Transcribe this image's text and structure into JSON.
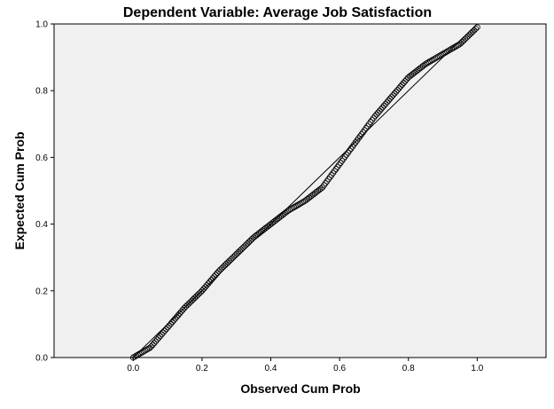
{
  "chart_data": {
    "type": "scatter",
    "title": "Dependent Variable: Average Job Satisfaction",
    "xlabel": "Observed Cum Prob",
    "ylabel": "Expected Cum Prob",
    "xlim": [
      -0.23,
      1.2
    ],
    "ylim": [
      0.0,
      1.0
    ],
    "x_ticks": [
      "0.0",
      "0.2",
      "0.4",
      "0.6",
      "0.8",
      "1.0"
    ],
    "y_ticks": [
      "0.0",
      "0.2",
      "0.4",
      "0.6",
      "0.8",
      "1.0"
    ],
    "grid": false,
    "legend": "none",
    "reference_line": {
      "from": [
        0.0,
        0.0
      ],
      "to": [
        1.0,
        1.0
      ]
    },
    "curve": [
      [
        0.0,
        0.0
      ],
      [
        0.05,
        0.03
      ],
      [
        0.1,
        0.09
      ],
      [
        0.15,
        0.15
      ],
      [
        0.2,
        0.2
      ],
      [
        0.25,
        0.26
      ],
      [
        0.3,
        0.31
      ],
      [
        0.35,
        0.36
      ],
      [
        0.4,
        0.4
      ],
      [
        0.45,
        0.44
      ],
      [
        0.5,
        0.47
      ],
      [
        0.55,
        0.51
      ],
      [
        0.6,
        0.58
      ],
      [
        0.65,
        0.65
      ],
      [
        0.7,
        0.72
      ],
      [
        0.75,
        0.78
      ],
      [
        0.8,
        0.84
      ],
      [
        0.85,
        0.88
      ],
      [
        0.9,
        0.91
      ],
      [
        0.95,
        0.94
      ],
      [
        1.0,
        0.99
      ]
    ],
    "point_count": 230,
    "colors": {
      "plot_background": "#f0f0f0",
      "points": "#000000",
      "reference_line": "#000000"
    }
  }
}
